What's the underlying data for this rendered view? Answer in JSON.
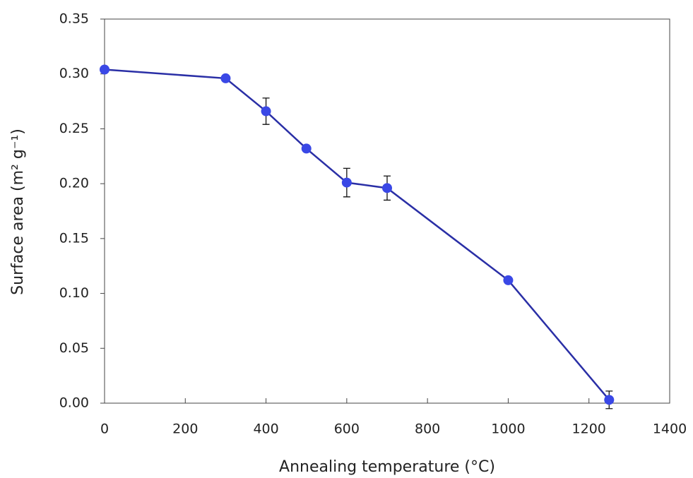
{
  "chart_data": {
    "type": "line",
    "xlabel": "Annealing temperature (°C)",
    "ylabel": "Surface area (m² g⁻¹)",
    "x": [
      0,
      300,
      400,
      500,
      600,
      700,
      1000,
      1250
    ],
    "series": [
      {
        "name": "Surface area",
        "color": "#2a2fa6",
        "marker_color": "#3a48e6",
        "values": [
          0.304,
          0.296,
          0.266,
          0.232,
          0.201,
          0.196,
          0.112,
          0.003
        ],
        "errors": [
          null,
          null,
          0.012,
          null,
          0.013,
          0.011,
          null,
          0.008
        ]
      }
    ],
    "xlim": [
      0,
      1400
    ],
    "xticks": [
      0,
      200,
      400,
      600,
      800,
      1000,
      1200,
      1400
    ],
    "ylim": [
      0,
      0.35
    ],
    "yticks": [
      {
        "value": 0,
        "label": "0.00"
      },
      0.05,
      {
        "value": 0.1,
        "label": "0.10"
      },
      0.15,
      {
        "value": 0.2,
        "label": "0.20"
      },
      0.25,
      {
        "value": 0.3,
        "label": "0.30"
      },
      0.35
    ],
    "grid": false
  }
}
